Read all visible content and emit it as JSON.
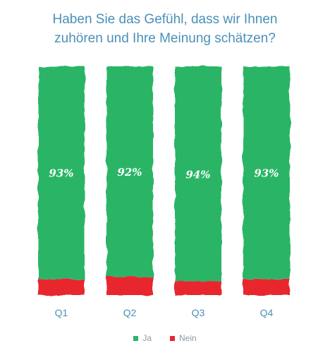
{
  "chart_data": {
    "type": "bar",
    "stacked": true,
    "normalized": true,
    "title_lines": [
      "Haben Sie das Gefühl, dass wir Ihnen",
      "zuhören und Ihre Meinung schätzen?"
    ],
    "categories": [
      "Q1",
      "Q2",
      "Q3",
      "Q4"
    ],
    "series": [
      {
        "name": "Ja",
        "color": "#2bb566",
        "values": [
          93,
          92,
          94,
          93
        ]
      },
      {
        "name": "Nein",
        "color": "#e8262d",
        "values": [
          7,
          8,
          6,
          7
        ]
      }
    ],
    "data_labels": [
      "93%",
      "92%",
      "94%",
      "93%"
    ],
    "ylim": [
      0,
      100
    ],
    "grid": false,
    "legend_position": "bottom"
  }
}
